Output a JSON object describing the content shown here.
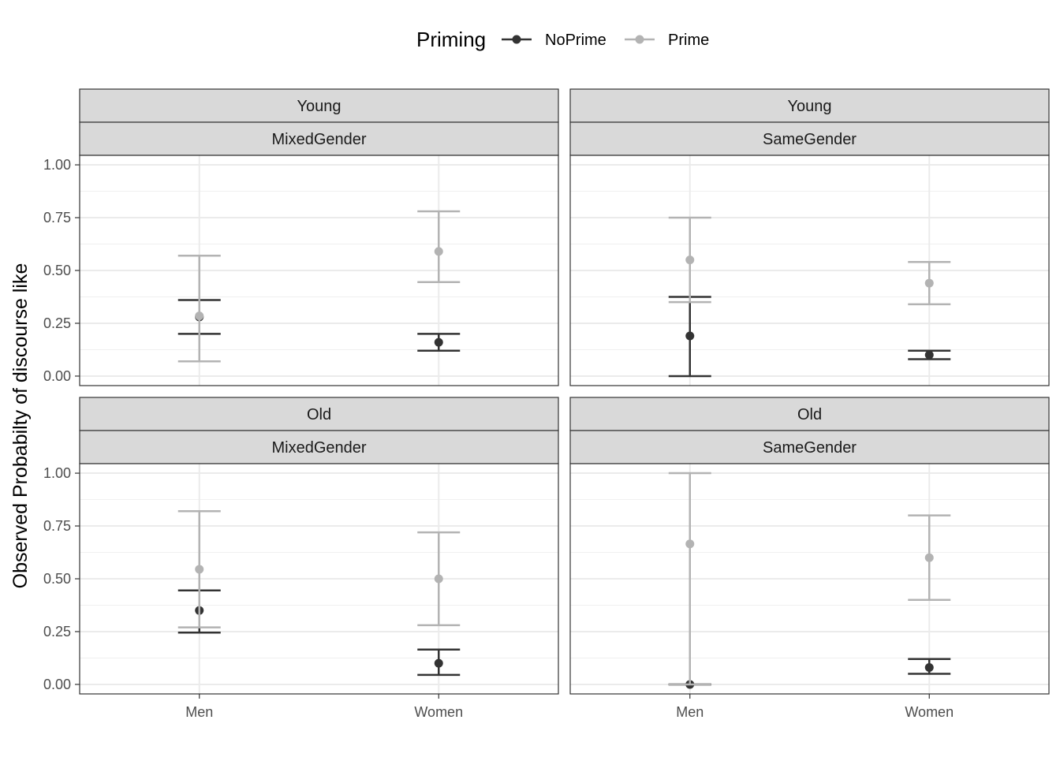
{
  "chart_data": {
    "type": "scatter",
    "geom": "point-with-errorbars",
    "ylabel": "Observed Probabilty of discourse like",
    "xlabel": "",
    "categories": [
      "Men",
      "Women"
    ],
    "yticks": [
      0,
      0.25,
      0.5,
      0.75,
      1
    ],
    "ytick_labels": [
      "0.00",
      "0.25",
      "0.50",
      "0.75",
      "1.00"
    ],
    "ylim": [
      -0.045,
      1.045
    ],
    "legend": {
      "title": "Priming",
      "position": "top",
      "entries": [
        {
          "name": "NoPrime",
          "color": "#333333"
        },
        {
          "name": "Prime",
          "color": "#b3b3b3"
        }
      ]
    },
    "panels": [
      {
        "age": "Young",
        "group": "MixedGender",
        "series": [
          {
            "name": "NoPrime",
            "points": [
              {
                "x": "Men",
                "y": 0.28,
                "ymin": 0.2,
                "ymax": 0.36
              },
              {
                "x": "Women",
                "y": 0.16,
                "ymin": 0.12,
                "ymax": 0.2
              }
            ]
          },
          {
            "name": "Prime",
            "points": [
              {
                "x": "Men",
                "y": 0.285,
                "ymin": 0.07,
                "ymax": 0.57
              },
              {
                "x": "Women",
                "y": 0.59,
                "ymin": 0.445,
                "ymax": 0.78
              }
            ]
          }
        ]
      },
      {
        "age": "Young",
        "group": "SameGender",
        "series": [
          {
            "name": "NoPrime",
            "points": [
              {
                "x": "Men",
                "y": 0.19,
                "ymin": 0.0,
                "ymax": 0.375
              },
              {
                "x": "Women",
                "y": 0.1,
                "ymin": 0.08,
                "ymax": 0.12
              }
            ]
          },
          {
            "name": "Prime",
            "points": [
              {
                "x": "Men",
                "y": 0.55,
                "ymin": 0.35,
                "ymax": 0.75
              },
              {
                "x": "Women",
                "y": 0.44,
                "ymin": 0.34,
                "ymax": 0.54
              }
            ]
          }
        ]
      },
      {
        "age": "Old",
        "group": "MixedGender",
        "series": [
          {
            "name": "NoPrime",
            "points": [
              {
                "x": "Men",
                "y": 0.35,
                "ymin": 0.245,
                "ymax": 0.445
              },
              {
                "x": "Women",
                "y": 0.1,
                "ymin": 0.045,
                "ymax": 0.165
              }
            ]
          },
          {
            "name": "Prime",
            "points": [
              {
                "x": "Men",
                "y": 0.545,
                "ymin": 0.27,
                "ymax": 0.82
              },
              {
                "x": "Women",
                "y": 0.5,
                "ymin": 0.28,
                "ymax": 0.72
              }
            ]
          }
        ]
      },
      {
        "age": "Old",
        "group": "SameGender",
        "series": [
          {
            "name": "NoPrime",
            "points": [
              {
                "x": "Men",
                "y": 0.0,
                "ymin": 0.0,
                "ymax": 0.0
              },
              {
                "x": "Women",
                "y": 0.08,
                "ymin": 0.05,
                "ymax": 0.12
              }
            ]
          },
          {
            "name": "Prime",
            "points": [
              {
                "x": "Men",
                "y": 0.665,
                "ymin": 0.0,
                "ymax": 1.0
              },
              {
                "x": "Women",
                "y": 0.6,
                "ymin": 0.4,
                "ymax": 0.8
              }
            ]
          }
        ]
      }
    ]
  }
}
